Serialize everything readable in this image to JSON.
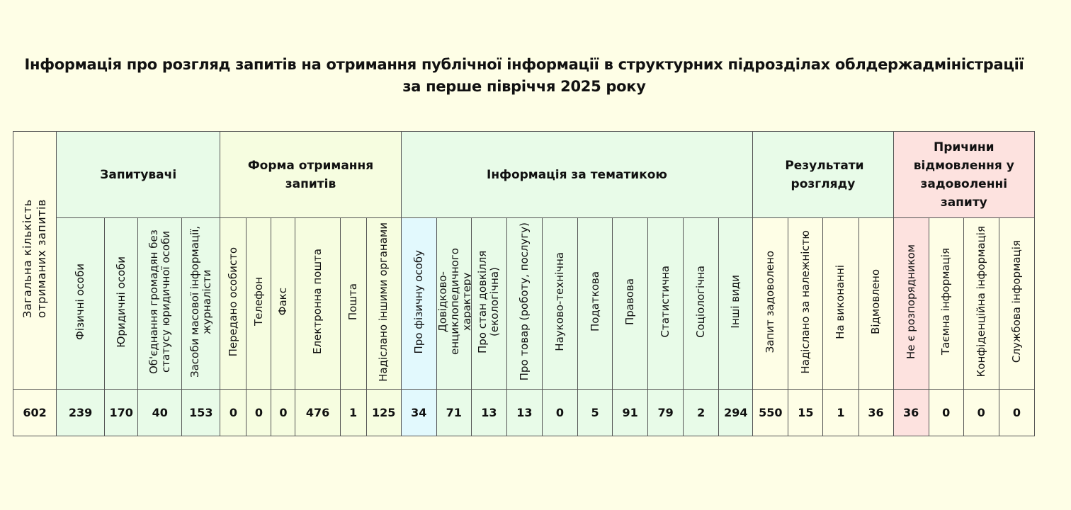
{
  "title": {
    "line1": "Інформація про розгляд запитів на отримання публічної інформації в структурних підрозділах облдержадміністрації",
    "line2": "за перше півріччя 2025 року"
  },
  "total_header": "Загальна кількість отриманих запитів",
  "groups": {
    "requesters": "Запитувачі",
    "form": "Форма отримання запитів",
    "topic": "Інформація за тематикою",
    "results": "Результати розгляду",
    "reasons": "Причини відмовлення у задоволенні запиту"
  },
  "columns": {
    "requesters": [
      "Фізичні особи",
      "Юридичні особи",
      "Об'єднання громадян без статусу юридичної особи",
      "Засоби масової інформації, журналісти"
    ],
    "form": [
      "Передано особисто",
      "Телефон",
      "Факс",
      "Електронна пошта",
      "Пошта",
      "Надіслано іншими органами"
    ],
    "topic": [
      "Про фізичну особу",
      "Довідково-енциклопедичного характеру",
      "Про стан довкілля (екологічна)",
      "Про товар (роботу, послугу)",
      "Науково-технічна",
      "Податкова",
      "Правова",
      "Статистична",
      "Соціологічна",
      "Інші види"
    ],
    "results": [
      "Запит задоволено",
      "Надіслано за належністю",
      "На виконанні",
      "Відмовлено"
    ],
    "reasons": [
      "Не є розпорядником",
      "Таємна інформація",
      "Конфіденційна інформація",
      "Службова інформація"
    ]
  },
  "values": {
    "total": "602",
    "requesters": [
      "239",
      "170",
      "40",
      "153"
    ],
    "form": [
      "0",
      "0",
      "0",
      "476",
      "1",
      "125"
    ],
    "topic": [
      "34",
      "71",
      "13",
      "13",
      "0",
      "5",
      "91",
      "79",
      "2",
      "294"
    ],
    "results": [
      "550",
      "15",
      "1",
      "36"
    ],
    "reasons": [
      "36",
      "0",
      "0",
      "0"
    ]
  },
  "colors": {
    "background": "#fefee6",
    "requesters": "#e8fbe8",
    "form": "#f6fde0",
    "topic": "#e8fbe8",
    "topic_first": "#e2f9fd",
    "results": "#e8fbe8",
    "reasons": "#fde2df"
  }
}
